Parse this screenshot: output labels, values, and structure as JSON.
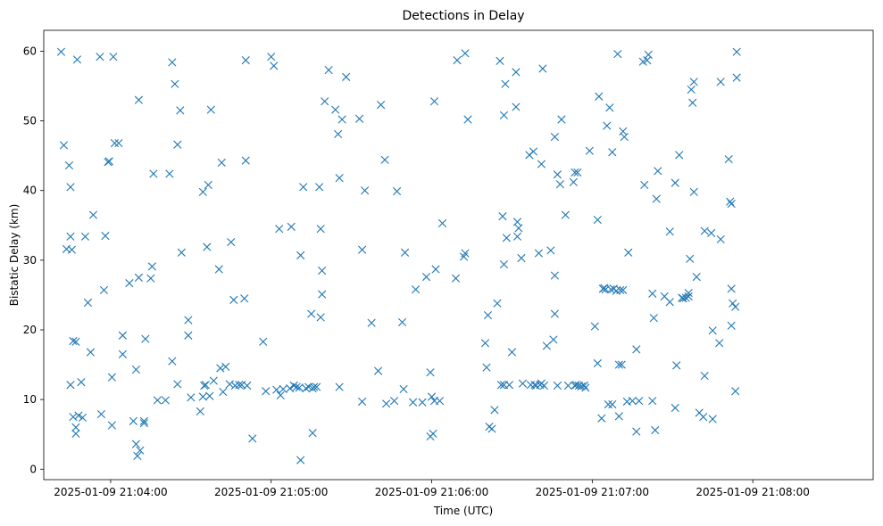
{
  "chart_data": {
    "type": "scatter",
    "title": "Detections in Delay",
    "xlabel": "Time (UTC)",
    "ylabel": "Bistatic Delay (km)",
    "marker": "x",
    "color": "#1f77b4",
    "grid": false,
    "legend": "none",
    "xlim": [
      "2025-01-09 21:03:35",
      "2025-01-09 21:08:45"
    ],
    "ylim": [
      -1.5,
      63
    ],
    "x_ticks": [
      "2025-01-09 21:04:00",
      "2025-01-09 21:05:00",
      "2025-01-09 21:06:00",
      "2025-01-09 21:07:00",
      "2025-01-09 21:08:00"
    ],
    "y_ticks": [
      0,
      10,
      20,
      30,
      40,
      50,
      60
    ],
    "points": [
      [
        "21:03:41.5",
        59.9
      ],
      [
        "21:03:42.5",
        46.5
      ],
      [
        "21:03:43.5",
        31.6
      ],
      [
        "21:03:44.5",
        43.6
      ],
      [
        "21:03:45",
        40.5
      ],
      [
        "21:03:45",
        33.4
      ],
      [
        "21:03:45",
        12.1
      ],
      [
        "21:03:45.5",
        31.5
      ],
      [
        "21:03:46",
        18.4
      ],
      [
        "21:03:46",
        7.5
      ],
      [
        "21:03:47",
        18.3
      ],
      [
        "21:03:47",
        6.0
      ],
      [
        "21:03:47",
        5.1
      ],
      [
        "21:03:47.5",
        58.8
      ],
      [
        "21:03:48",
        7.7
      ],
      [
        "21:03:49",
        12.5
      ],
      [
        "21:03:49.5",
        7.4
      ],
      [
        "21:03:50.5",
        33.4
      ],
      [
        "21:03:51.5",
        23.9
      ],
      [
        "21:03:52.5",
        16.8
      ],
      [
        "21:03:53.5",
        36.5
      ],
      [
        "21:03:56",
        59.2
      ],
      [
        "21:03:56.5",
        7.9
      ],
      [
        "21:03:57.5",
        25.7
      ],
      [
        "21:03:58",
        33.5
      ],
      [
        "21:03:59",
        44.1
      ],
      [
        "21:03:59.5",
        44.2
      ],
      [
        "21:04:00.5",
        13.2
      ],
      [
        "21:04:00.5",
        6.3
      ],
      [
        "21:04:01",
        59.2
      ],
      [
        "21:04:01.5",
        46.8
      ],
      [
        "21:04:03",
        46.8
      ],
      [
        "21:04:04.5",
        19.2
      ],
      [
        "21:04:04.5",
        16.5
      ],
      [
        "21:04:07",
        26.7
      ],
      [
        "21:04:08.5",
        6.9
      ],
      [
        "21:04:09.5",
        14.3
      ],
      [
        "21:04:09.5",
        3.6
      ],
      [
        "21:04:10",
        1.9
      ],
      [
        "21:04:10.5",
        53.0
      ],
      [
        "21:04:10.5",
        27.5
      ],
      [
        "21:04:11",
        2.7
      ],
      [
        "21:04:12.5",
        6.9
      ],
      [
        "21:04:12.5",
        6.6
      ],
      [
        "21:04:13",
        18.7
      ],
      [
        "21:04:15",
        27.4
      ],
      [
        "21:04:15.5",
        29.1
      ],
      [
        "21:04:16",
        42.4
      ],
      [
        "21:04:17.5",
        9.9
      ],
      [
        "21:04:20.5",
        9.9
      ],
      [
        "21:04:22",
        42.4
      ],
      [
        "21:04:23",
        15.5
      ],
      [
        "21:04:23",
        58.4
      ],
      [
        "21:04:24",
        55.3
      ],
      [
        "21:04:25",
        12.2
      ],
      [
        "21:04:25",
        46.6
      ],
      [
        "21:04:26",
        51.5
      ],
      [
        "21:04:26.5",
        31.1
      ],
      [
        "21:04:29",
        21.4
      ],
      [
        "21:04:29",
        19.2
      ],
      [
        "21:04:30",
        10.3
      ],
      [
        "21:04:33.5",
        8.3
      ],
      [
        "21:04:34.5",
        39.8
      ],
      [
        "21:04:34.5",
        10.4
      ],
      [
        "21:04:35",
        12.0
      ],
      [
        "21:04:35.5",
        12.1
      ],
      [
        "21:04:36",
        31.9
      ],
      [
        "21:04:36.5",
        40.8
      ],
      [
        "21:04:37",
        10.5
      ],
      [
        "21:04:37.5",
        51.6
      ],
      [
        "21:04:38.5",
        12.7
      ],
      [
        "21:04:40.5",
        28.7
      ],
      [
        "21:04:41",
        14.5
      ],
      [
        "21:04:41.5",
        44.0
      ],
      [
        "21:04:42",
        11.1
      ],
      [
        "21:04:43",
        14.7
      ],
      [
        "21:04:44.5",
        12.2
      ],
      [
        "21:04:45",
        32.6
      ],
      [
        "21:04:46",
        24.3
      ],
      [
        "21:04:46.5",
        12.0
      ],
      [
        "21:04:48",
        12.1
      ],
      [
        "21:04:49",
        12.1
      ],
      [
        "21:04:50",
        24.5
      ],
      [
        "21:04:50.5",
        44.3
      ],
      [
        "21:04:50.5",
        58.7
      ],
      [
        "21:04:51",
        12.0
      ],
      [
        "21:04:53",
        4.4
      ],
      [
        "21:04:57",
        18.3
      ],
      [
        "21:04:58",
        11.2
      ],
      [
        "21:05:00",
        59.2
      ],
      [
        "21:05:01",
        57.9
      ],
      [
        "21:05:02",
        11.4
      ],
      [
        "21:05:03",
        34.5
      ],
      [
        "21:05:03.5",
        10.6
      ],
      [
        "21:05:04.5",
        11.5
      ],
      [
        "21:05:07",
        11.6
      ],
      [
        "21:05:07.5",
        34.8
      ],
      [
        "21:05:08.5",
        12.0
      ],
      [
        "21:05:09.5",
        11.8
      ],
      [
        "21:05:10.5",
        11.7
      ],
      [
        "21:05:11",
        30.7
      ],
      [
        "21:05:11",
        1.3
      ],
      [
        "21:05:12",
        40.5
      ],
      [
        "21:05:13",
        11.6
      ],
      [
        "21:05:14",
        11.8
      ],
      [
        "21:05:15",
        22.3
      ],
      [
        "21:05:15.5",
        11.6
      ],
      [
        "21:05:15.5",
        5.2
      ],
      [
        "21:05:16",
        11.8
      ],
      [
        "21:05:17",
        11.8
      ],
      [
        "21:05:18",
        40.5
      ],
      [
        "21:05:18.5",
        21.8
      ],
      [
        "21:05:18.5",
        34.5
      ],
      [
        "21:05:19",
        28.5
      ],
      [
        "21:05:19",
        25.1
      ],
      [
        "21:05:20",
        52.8
      ],
      [
        "21:05:21.5",
        57.3
      ],
      [
        "21:05:24",
        51.6
      ],
      [
        "21:05:25",
        48.1
      ],
      [
        "21:05:25.5",
        11.8
      ],
      [
        "21:05:25.5",
        41.8
      ],
      [
        "21:05:26.5",
        50.2
      ],
      [
        "21:05:28",
        56.3
      ],
      [
        "21:05:33",
        50.3
      ],
      [
        "21:05:34",
        31.5
      ],
      [
        "21:05:34",
        9.7
      ],
      [
        "21:05:35",
        40.0
      ],
      [
        "21:05:37.5",
        21.0
      ],
      [
        "21:05:40",
        14.1
      ],
      [
        "21:05:41",
        52.3
      ],
      [
        "21:05:42.5",
        44.4
      ],
      [
        "21:05:43",
        9.4
      ],
      [
        "21:05:46",
        9.8
      ],
      [
        "21:05:47",
        39.9
      ],
      [
        "21:05:49",
        21.1
      ],
      [
        "21:05:49.5",
        11.5
      ],
      [
        "21:05:50",
        31.1
      ],
      [
        "21:05:53",
        9.6
      ],
      [
        "21:05:54",
        25.8
      ],
      [
        "21:05:56.5",
        9.6
      ],
      [
        "21:05:58",
        27.6
      ],
      [
        "21:05:59.5",
        13.9
      ],
      [
        "21:05:59.5",
        4.7
      ],
      [
        "21:06:00",
        10.4
      ],
      [
        "21:06:00.5",
        5.1
      ],
      [
        "21:06:01",
        52.8
      ],
      [
        "21:06:01",
        9.8
      ],
      [
        "21:06:01.5",
        28.7
      ],
      [
        "21:06:03",
        9.8
      ],
      [
        "21:06:04",
        35.3
      ],
      [
        "21:06:09",
        27.4
      ],
      [
        "21:06:09.5",
        58.7
      ],
      [
        "21:06:12",
        30.5
      ],
      [
        "21:06:12.5",
        59.7
      ],
      [
        "21:06:12.5",
        31.0
      ],
      [
        "21:06:13.5",
        50.2
      ],
      [
        "21:06:20",
        18.1
      ],
      [
        "21:06:20.5",
        14.6
      ],
      [
        "21:06:21",
        22.1
      ],
      [
        "21:06:21.5",
        6.1
      ],
      [
        "21:06:22.5",
        5.8
      ],
      [
        "21:06:23.5",
        8.5
      ],
      [
        "21:06:24.5",
        23.8
      ],
      [
        "21:06:25.5",
        58.6
      ],
      [
        "21:06:26",
        12.1
      ],
      [
        "21:06:26.5",
        36.3
      ],
      [
        "21:06:27",
        12.1
      ],
      [
        "21:06:27",
        50.8
      ],
      [
        "21:06:27",
        29.4
      ],
      [
        "21:06:27.5",
        55.3
      ],
      [
        "21:06:28",
        33.2
      ],
      [
        "21:06:29",
        12.1
      ],
      [
        "21:06:30",
        16.8
      ],
      [
        "21:06:31.5",
        52.0
      ],
      [
        "21:06:31.5",
        57.0
      ],
      [
        "21:06:32",
        33.4
      ],
      [
        "21:06:32",
        35.5
      ],
      [
        "21:06:32.5",
        34.6
      ],
      [
        "21:06:33.5",
        30.3
      ],
      [
        "21:06:34",
        12.3
      ],
      [
        "21:06:36.5",
        45.1
      ],
      [
        "21:06:37",
        12.1
      ],
      [
        "21:06:38",
        45.6
      ],
      [
        "21:06:38.5",
        12.1
      ],
      [
        "21:06:39",
        12.0
      ],
      [
        "21:06:40",
        31.0
      ],
      [
        "21:06:40.5",
        12.1
      ],
      [
        "21:06:41",
        12.3
      ],
      [
        "21:06:41",
        43.8
      ],
      [
        "21:06:41.5",
        57.5
      ],
      [
        "21:06:42",
        12.0
      ],
      [
        "21:06:43",
        17.7
      ],
      [
        "21:06:44.5",
        31.4
      ],
      [
        "21:06:45.5",
        18.6
      ],
      [
        "21:06:46",
        22.3
      ],
      [
        "21:06:46",
        27.8
      ],
      [
        "21:06:46",
        47.7
      ],
      [
        "21:06:47",
        12.0
      ],
      [
        "21:06:47",
        42.3
      ],
      [
        "21:06:48",
        40.9
      ],
      [
        "21:06:48.5",
        50.2
      ],
      [
        "21:06:50",
        36.5
      ],
      [
        "21:06:51",
        12.0
      ],
      [
        "21:06:53",
        41.2
      ],
      [
        "21:06:53.5",
        12.0
      ],
      [
        "21:06:53.5",
        42.6
      ],
      [
        "21:06:54",
        12.1
      ],
      [
        "21:06:54.5",
        42.6
      ],
      [
        "21:06:55",
        12.0
      ],
      [
        "21:06:56",
        11.9
      ],
      [
        "21:06:57",
        12.0
      ],
      [
        "21:06:57.5",
        11.7
      ],
      [
        "21:06:59",
        45.7
      ],
      [
        "21:07:01",
        20.5
      ],
      [
        "21:07:02",
        15.2
      ],
      [
        "21:07:02",
        35.8
      ],
      [
        "21:07:02.5",
        53.5
      ],
      [
        "21:07:03.5",
        7.3
      ],
      [
        "21:07:04",
        25.9
      ],
      [
        "21:07:04.5",
        26.0
      ],
      [
        "21:07:05",
        25.8
      ],
      [
        "21:07:05.5",
        49.3
      ],
      [
        "21:07:06",
        9.3
      ],
      [
        "21:07:06.5",
        51.9
      ],
      [
        "21:07:07",
        25.8
      ],
      [
        "21:07:07.5",
        9.3
      ],
      [
        "21:07:07.5",
        45.5
      ],
      [
        "21:07:08",
        25.9
      ],
      [
        "21:07:09",
        25.6
      ],
      [
        "21:07:09.5",
        59.6
      ],
      [
        "21:07:10",
        15.0
      ],
      [
        "21:07:10",
        7.6
      ],
      [
        "21:07:10.5",
        25.7
      ],
      [
        "21:07:11",
        15.0
      ],
      [
        "21:07:11.5",
        25.7
      ],
      [
        "21:07:11.5",
        48.5
      ],
      [
        "21:07:12",
        47.7
      ],
      [
        "21:07:13",
        9.7
      ],
      [
        "21:07:13.5",
        31.1
      ],
      [
        "21:07:15",
        9.8
      ],
      [
        "21:07:16.5",
        17.2
      ],
      [
        "21:07:16.5",
        5.4
      ],
      [
        "21:07:17.5",
        9.8
      ],
      [
        "21:07:19",
        58.5
      ],
      [
        "21:07:19.5",
        40.8
      ],
      [
        "21:07:20.5",
        58.7
      ],
      [
        "21:07:21",
        59.5
      ],
      [
        "21:07:22.5",
        9.8
      ],
      [
        "21:07:22.5",
        25.2
      ],
      [
        "21:07:23",
        21.7
      ],
      [
        "21:07:23.5",
        5.6
      ],
      [
        "21:07:24",
        38.8
      ],
      [
        "21:07:24.5",
        42.8
      ],
      [
        "21:07:27",
        24.8
      ],
      [
        "21:07:29",
        34.1
      ],
      [
        "21:07:29",
        24.0
      ],
      [
        "21:07:31",
        41.1
      ],
      [
        "21:07:31",
        8.8
      ],
      [
        "21:07:31.5",
        14.9
      ],
      [
        "21:07:32.5",
        45.1
      ],
      [
        "21:07:33.5",
        24.6
      ],
      [
        "21:07:34",
        24.5
      ],
      [
        "21:07:35",
        24.6
      ],
      [
        "21:07:36",
        24.8
      ],
      [
        "21:07:36",
        25.3
      ],
      [
        "21:07:36.5",
        30.2
      ],
      [
        "21:07:37",
        54.5
      ],
      [
        "21:07:37.5",
        52.6
      ],
      [
        "21:07:38",
        55.6
      ],
      [
        "21:07:38",
        39.8
      ],
      [
        "21:07:39",
        27.6
      ],
      [
        "21:07:40",
        8.1
      ],
      [
        "21:07:41.5",
        7.5
      ],
      [
        "21:07:42",
        34.2
      ],
      [
        "21:07:42",
        13.4
      ],
      [
        "21:07:44.5",
        33.9
      ],
      [
        "21:07:45",
        7.2
      ],
      [
        "21:07:45",
        19.9
      ],
      [
        "21:07:47.5",
        18.1
      ],
      [
        "21:07:48",
        33.0
      ],
      [
        "21:07:48",
        55.6
      ],
      [
        "21:07:51",
        44.5
      ],
      [
        "21:07:51.5",
        38.4
      ],
      [
        "21:07:52",
        38.1
      ],
      [
        "21:07:52",
        25.9
      ],
      [
        "21:07:52",
        20.6
      ],
      [
        "21:07:52.5",
        23.8
      ],
      [
        "21:07:53.5",
        23.3
      ],
      [
        "21:07:53.5",
        11.2
      ],
      [
        "21:07:54",
        59.9
      ],
      [
        "21:07:54",
        56.2
      ]
    ]
  }
}
